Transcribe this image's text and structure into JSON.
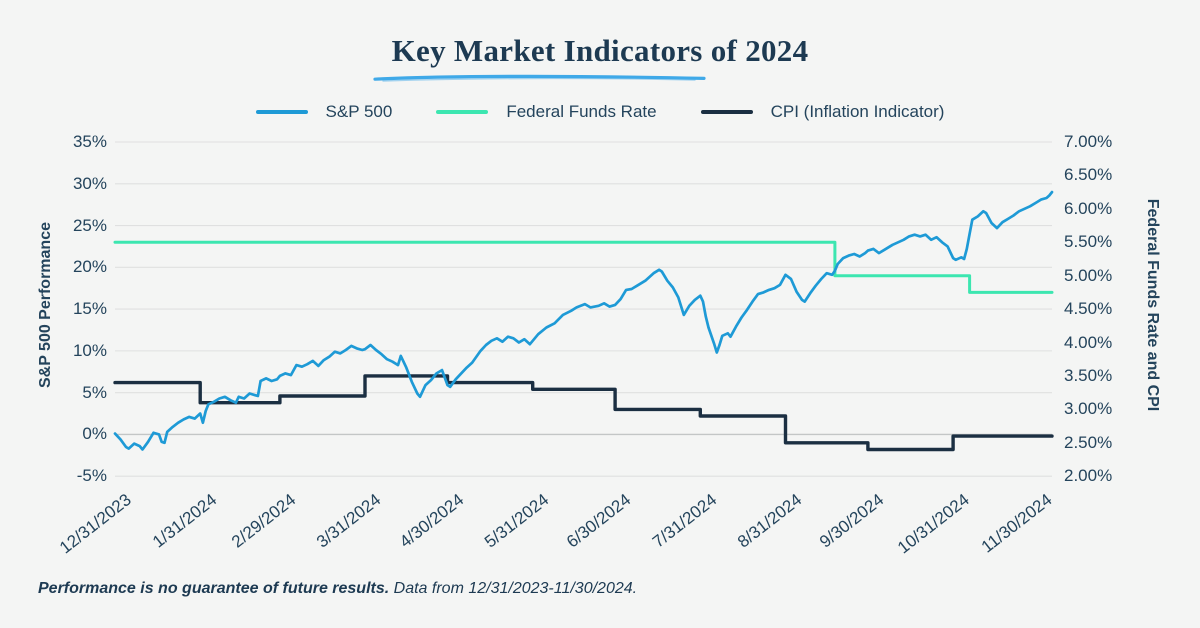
{
  "page": {
    "background": "#f4f5f4"
  },
  "title": {
    "text": "Key Market Indicators of 2024",
    "underline_color": "#3fa9e8"
  },
  "legend": {
    "items": [
      {
        "label": "S&P 500",
        "color": "#1e9ad6"
      },
      {
        "label": "Federal Funds Rate",
        "color": "#3ce6b0"
      },
      {
        "label": "CPI (Inflation Indicator)",
        "color": "#1b2f42"
      }
    ]
  },
  "left_axis": {
    "title": "S&P 500 Performance",
    "ticks": [
      "35%",
      "30%",
      "25%",
      "20%",
      "15%",
      "10%",
      "5%",
      "0%",
      "-5%"
    ]
  },
  "right_axis": {
    "title": "Federal Funds Rate and CPI",
    "ticks": [
      "7.00%",
      "6.50%",
      "6.00%",
      "5.50%",
      "5.00%",
      "4.50%",
      "4.00%",
      "3.50%",
      "3.00%",
      "2.50%",
      "2.00%"
    ]
  },
  "x_axis": {
    "labels": [
      "12/31/2023",
      "1/31/2024",
      "2/29/2024",
      "3/31/2024",
      "4/30/2024",
      "5/31/2024",
      "6/30/2024",
      "7/31/2024",
      "8/31/2024",
      "9/30/2024",
      "10/31/2024",
      "11/30/2024"
    ]
  },
  "footer": {
    "bold": "Performance is no guarantee of future results.",
    "regular": " Data from 12/31/2023-11/30/2024."
  },
  "chart_data": {
    "type": "line",
    "title": "Key Market Indicators of 2024",
    "x_unit": "days since 12/31/2023",
    "x_range": [
      0,
      341
    ],
    "x_tick_days": [
      0,
      31,
      60,
      91,
      121,
      152,
      182,
      213,
      244,
      274,
      305,
      335
    ],
    "x_tick_labels": [
      "12/31/2023",
      "1/31/2024",
      "2/29/2024",
      "3/31/2024",
      "4/30/2024",
      "5/31/2024",
      "6/30/2024",
      "7/31/2024",
      "8/31/2024",
      "9/30/2024",
      "10/31/2024",
      "11/30/2024"
    ],
    "left_axis": {
      "label": "S&P 500 Performance",
      "range_pct": [
        -5,
        35
      ],
      "tick_step": 5
    },
    "right_axis": {
      "label": "Federal Funds Rate and CPI",
      "range_pct": [
        2.0,
        7.0
      ],
      "tick_step": 0.5
    },
    "grid": {
      "color": "#dfe0e0",
      "zero_line_color": "#c3c6c6",
      "horizontal_only": true
    },
    "legend_position": "top",
    "series": [
      {
        "name": "S&P 500",
        "axis": "left",
        "color": "#1e9ad6",
        "width": 2.7,
        "interpolation": "linear",
        "points": [
          [
            0,
            0.1
          ],
          [
            2,
            -0.6
          ],
          [
            4,
            -1.5
          ],
          [
            5,
            -1.7
          ],
          [
            7,
            -1.1
          ],
          [
            9,
            -1.4
          ],
          [
            10,
            -1.8
          ],
          [
            12,
            -0.9
          ],
          [
            14,
            0.2
          ],
          [
            16,
            0.0
          ],
          [
            17,
            -0.9
          ],
          [
            18,
            -1.0
          ],
          [
            19,
            0.3
          ],
          [
            21,
            0.9
          ],
          [
            23,
            1.4
          ],
          [
            25,
            1.8
          ],
          [
            27,
            2.1
          ],
          [
            29,
            1.9
          ],
          [
            31,
            2.5
          ],
          [
            32,
            1.4
          ],
          [
            33,
            2.8
          ],
          [
            34,
            3.6
          ],
          [
            36,
            3.9
          ],
          [
            38,
            4.3
          ],
          [
            40,
            4.5
          ],
          [
            42,
            4.1
          ],
          [
            44,
            3.8
          ],
          [
            45,
            4.5
          ],
          [
            47,
            4.3
          ],
          [
            49,
            4.9
          ],
          [
            51,
            4.7
          ],
          [
            52,
            4.6
          ],
          [
            53,
            6.4
          ],
          [
            55,
            6.7
          ],
          [
            57,
            6.4
          ],
          [
            59,
            6.6
          ],
          [
            60,
            7.0
          ],
          [
            62,
            7.3
          ],
          [
            64,
            7.1
          ],
          [
            66,
            8.3
          ],
          [
            68,
            8.1
          ],
          [
            70,
            8.4
          ],
          [
            72,
            8.8
          ],
          [
            74,
            8.2
          ],
          [
            76,
            8.9
          ],
          [
            78,
            9.3
          ],
          [
            80,
            9.9
          ],
          [
            82,
            9.7
          ],
          [
            84,
            10.1
          ],
          [
            86,
            10.6
          ],
          [
            88,
            10.3
          ],
          [
            90,
            10.1
          ],
          [
            91,
            10.2
          ],
          [
            93,
            10.7
          ],
          [
            95,
            10.1
          ],
          [
            97,
            9.6
          ],
          [
            99,
            9.0
          ],
          [
            101,
            8.7
          ],
          [
            103,
            8.3
          ],
          [
            104,
            9.4
          ],
          [
            106,
            8.0
          ],
          [
            108,
            6.3
          ],
          [
            110,
            4.9
          ],
          [
            111,
            4.5
          ],
          [
            113,
            5.9
          ],
          [
            115,
            6.5
          ],
          [
            117,
            7.3
          ],
          [
            119,
            7.7
          ],
          [
            121,
            5.9
          ],
          [
            122,
            5.7
          ],
          [
            124,
            6.6
          ],
          [
            126,
            7.3
          ],
          [
            128,
            8.0
          ],
          [
            130,
            8.6
          ],
          [
            133,
            10.0
          ],
          [
            135,
            10.7
          ],
          [
            137,
            11.2
          ],
          [
            139,
            11.5
          ],
          [
            141,
            11.1
          ],
          [
            143,
            11.7
          ],
          [
            145,
            11.5
          ],
          [
            147,
            11.0
          ],
          [
            149,
            11.4
          ],
          [
            151,
            10.8
          ],
          [
            154,
            12.0
          ],
          [
            157,
            12.8
          ],
          [
            160,
            13.3
          ],
          [
            163,
            14.3
          ],
          [
            166,
            14.8
          ],
          [
            168,
            15.2
          ],
          [
            171,
            15.6
          ],
          [
            173,
            15.2
          ],
          [
            176,
            15.4
          ],
          [
            178,
            15.7
          ],
          [
            180,
            15.3
          ],
          [
            182,
            15.5
          ],
          [
            184,
            16.2
          ],
          [
            186,
            17.3
          ],
          [
            188,
            17.4
          ],
          [
            190,
            17.8
          ],
          [
            193,
            18.4
          ],
          [
            196,
            19.3
          ],
          [
            198,
            19.7
          ],
          [
            199,
            19.5
          ],
          [
            201,
            18.4
          ],
          [
            203,
            17.6
          ],
          [
            205,
            16.4
          ],
          [
            207,
            14.3
          ],
          [
            209,
            15.4
          ],
          [
            211,
            16.1
          ],
          [
            213,
            16.6
          ],
          [
            214,
            15.9
          ],
          [
            215,
            14.1
          ],
          [
            216,
            12.8
          ],
          [
            218,
            10.9
          ],
          [
            219,
            9.8
          ],
          [
            220,
            10.7
          ],
          [
            221,
            11.8
          ],
          [
            223,
            12.1
          ],
          [
            224,
            11.7
          ],
          [
            226,
            12.9
          ],
          [
            228,
            14.0
          ],
          [
            230,
            14.9
          ],
          [
            232,
            15.9
          ],
          [
            234,
            16.8
          ],
          [
            236,
            17.0
          ],
          [
            238,
            17.3
          ],
          [
            240,
            17.5
          ],
          [
            242,
            17.9
          ],
          [
            244,
            19.1
          ],
          [
            246,
            18.6
          ],
          [
            248,
            17.1
          ],
          [
            250,
            16.1
          ],
          [
            251,
            15.9
          ],
          [
            253,
            16.9
          ],
          [
            255,
            17.8
          ],
          [
            257,
            18.6
          ],
          [
            259,
            19.3
          ],
          [
            261,
            19.1
          ],
          [
            262,
            19.6
          ],
          [
            263,
            20.4
          ],
          [
            265,
            21.1
          ],
          [
            267,
            21.4
          ],
          [
            269,
            21.6
          ],
          [
            271,
            21.3
          ],
          [
            273,
            21.7
          ],
          [
            274,
            22.0
          ],
          [
            276,
            22.2
          ],
          [
            278,
            21.7
          ],
          [
            280,
            22.1
          ],
          [
            283,
            22.7
          ],
          [
            285,
            23.0
          ],
          [
            287,
            23.3
          ],
          [
            289,
            23.7
          ],
          [
            291,
            23.9
          ],
          [
            293,
            23.7
          ],
          [
            295,
            23.9
          ],
          [
            297,
            23.3
          ],
          [
            299,
            23.6
          ],
          [
            301,
            23.0
          ],
          [
            303,
            22.5
          ],
          [
            305,
            21.1
          ],
          [
            306,
            20.9
          ],
          [
            308,
            21.2
          ],
          [
            309,
            21.0
          ],
          [
            310,
            22.2
          ],
          [
            311,
            24.0
          ],
          [
            312,
            25.7
          ],
          [
            314,
            26.1
          ],
          [
            316,
            26.7
          ],
          [
            317,
            26.5
          ],
          [
            319,
            25.3
          ],
          [
            321,
            24.7
          ],
          [
            323,
            25.4
          ],
          [
            325,
            25.8
          ],
          [
            327,
            26.2
          ],
          [
            329,
            26.7
          ],
          [
            331,
            27.0
          ],
          [
            333,
            27.3
          ],
          [
            335,
            27.7
          ],
          [
            337,
            28.1
          ],
          [
            339,
            28.3
          ],
          [
            340,
            28.6
          ],
          [
            341,
            29.0
          ]
        ]
      },
      {
        "name": "Federal Funds Rate",
        "axis": "right",
        "color": "#3ce6b0",
        "width": 3,
        "interpolation": "step-after",
        "points": [
          [
            0,
            5.5
          ],
          [
            262,
            5.0
          ],
          [
            311,
            4.75
          ]
        ]
      },
      {
        "name": "CPI (Inflation Indicator)",
        "axis": "right",
        "color": "#1b2f42",
        "width": 3.4,
        "interpolation": "step-after",
        "points": [
          [
            0,
            3.4
          ],
          [
            31,
            3.1
          ],
          [
            60,
            3.2
          ],
          [
            91,
            3.5
          ],
          [
            121,
            3.4
          ],
          [
            152,
            3.3
          ],
          [
            182,
            3.0
          ],
          [
            213,
            2.9
          ],
          [
            244,
            2.5
          ],
          [
            274,
            2.4
          ],
          [
            305,
            2.6
          ]
        ]
      }
    ]
  }
}
